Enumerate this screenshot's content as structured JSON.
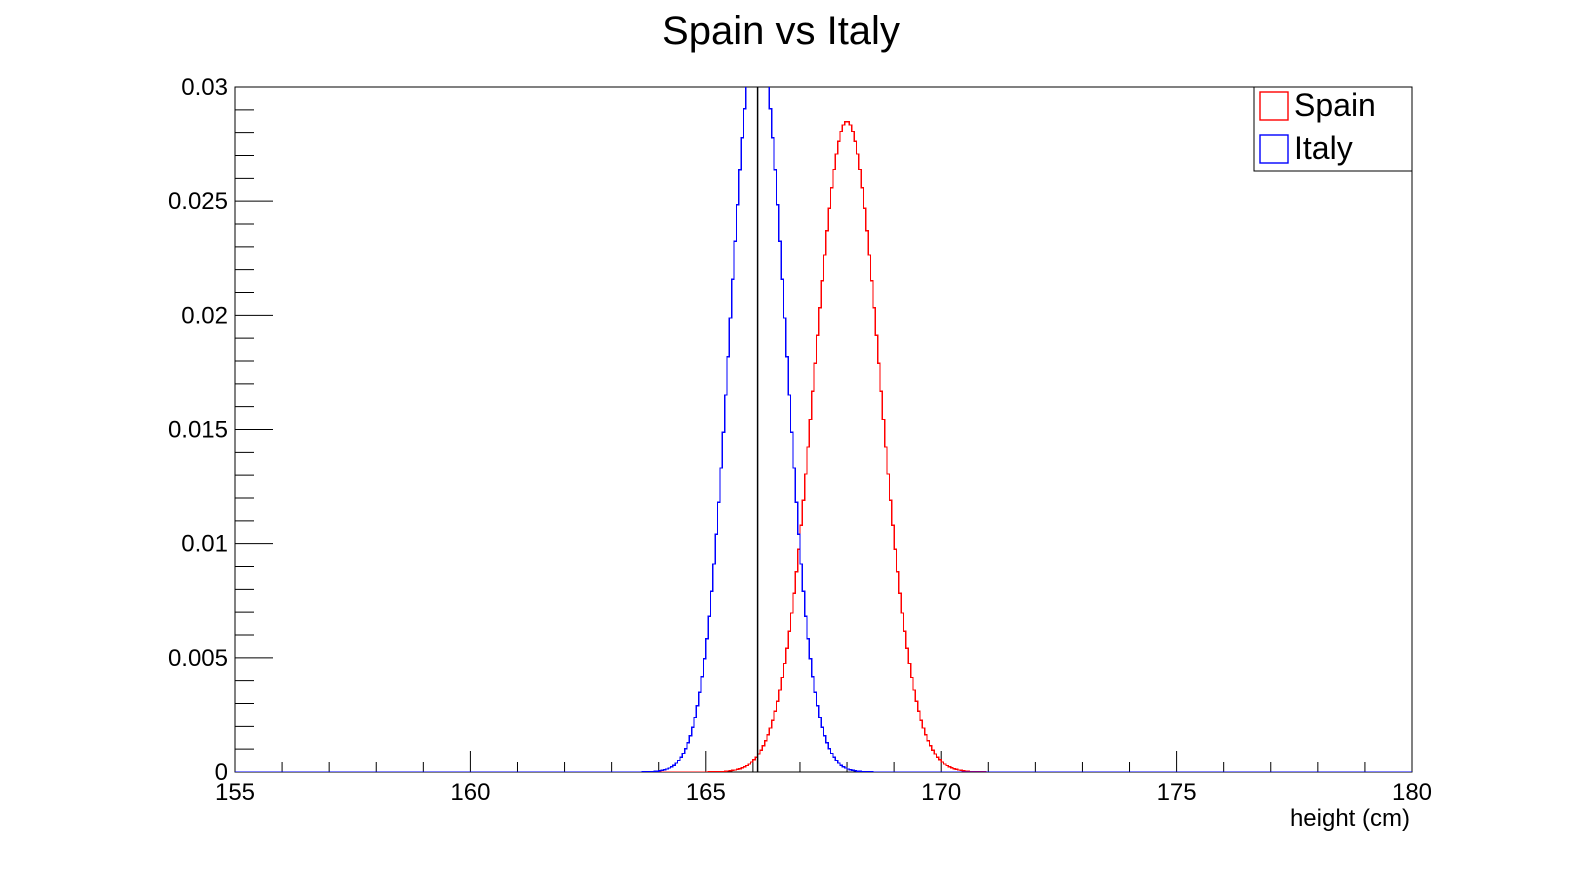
{
  "chart_data": {
    "type": "line",
    "title": "Spain vs Italy",
    "xlabel": "height (cm)",
    "ylabel": "",
    "xlim": [
      155,
      180
    ],
    "ylim": [
      0,
      0.03
    ],
    "x_ticks": [
      155,
      160,
      165,
      170,
      175,
      180
    ],
    "x_tick_labels": [
      "155",
      "160",
      "165",
      "170",
      "175",
      "180"
    ],
    "y_ticks": [
      0,
      0.005,
      0.01,
      0.015,
      0.02,
      0.025,
      0.03
    ],
    "y_tick_labels": [
      "0",
      "0.005",
      "0.01",
      "0.015",
      "0.02",
      "0.025",
      "0.03"
    ],
    "grid": false,
    "legend_position": "top-right",
    "histogram": true,
    "x_range_bins": [
      155,
      180
    ],
    "bin_count": 500,
    "series": [
      {
        "name": "Spain",
        "color": "#ff0000",
        "peak_x": 168.0,
        "peak_y": 0.0285,
        "sigma": 0.7,
        "values_at_x": [
          {
            "x": 165.5,
            "y": 0.0001
          },
          {
            "x": 166.0,
            "y": 0.0004
          },
          {
            "x": 166.5,
            "y": 0.0029
          },
          {
            "x": 167.0,
            "y": 0.01
          },
          {
            "x": 167.5,
            "y": 0.0221
          },
          {
            "x": 168.0,
            "y": 0.0285
          },
          {
            "x": 168.5,
            "y": 0.0221
          },
          {
            "x": 169.0,
            "y": 0.01
          },
          {
            "x": 169.5,
            "y": 0.0029
          },
          {
            "x": 170.0,
            "y": 0.0004
          },
          {
            "x": 170.5,
            "y": 0.0001
          }
        ]
      },
      {
        "name": "Italy",
        "color": "#0000ff",
        "peak_x": 166.1,
        "peak_y": 0.0325,
        "sigma": 0.58,
        "values_at_x": [
          {
            "x": 164.0,
            "y": 0.0003
          },
          {
            "x": 164.5,
            "y": 0.0007
          },
          {
            "x": 165.0,
            "y": 0.0043
          },
          {
            "x": 165.5,
            "y": 0.0156
          },
          {
            "x": 166.0,
            "y": 0.032
          },
          {
            "x": 166.5,
            "y": 0.0244
          },
          {
            "x": 167.0,
            "y": 0.0097
          },
          {
            "x": 167.5,
            "y": 0.0018
          },
          {
            "x": 168.0,
            "y": 0.0002
          }
        ]
      }
    ],
    "vertical_marker": {
      "x": 166.1,
      "color": "#000000"
    }
  },
  "legend": {
    "items": [
      {
        "label": "Spain",
        "color": "#ff0000"
      },
      {
        "label": "Italy",
        "color": "#0000ff"
      }
    ]
  }
}
